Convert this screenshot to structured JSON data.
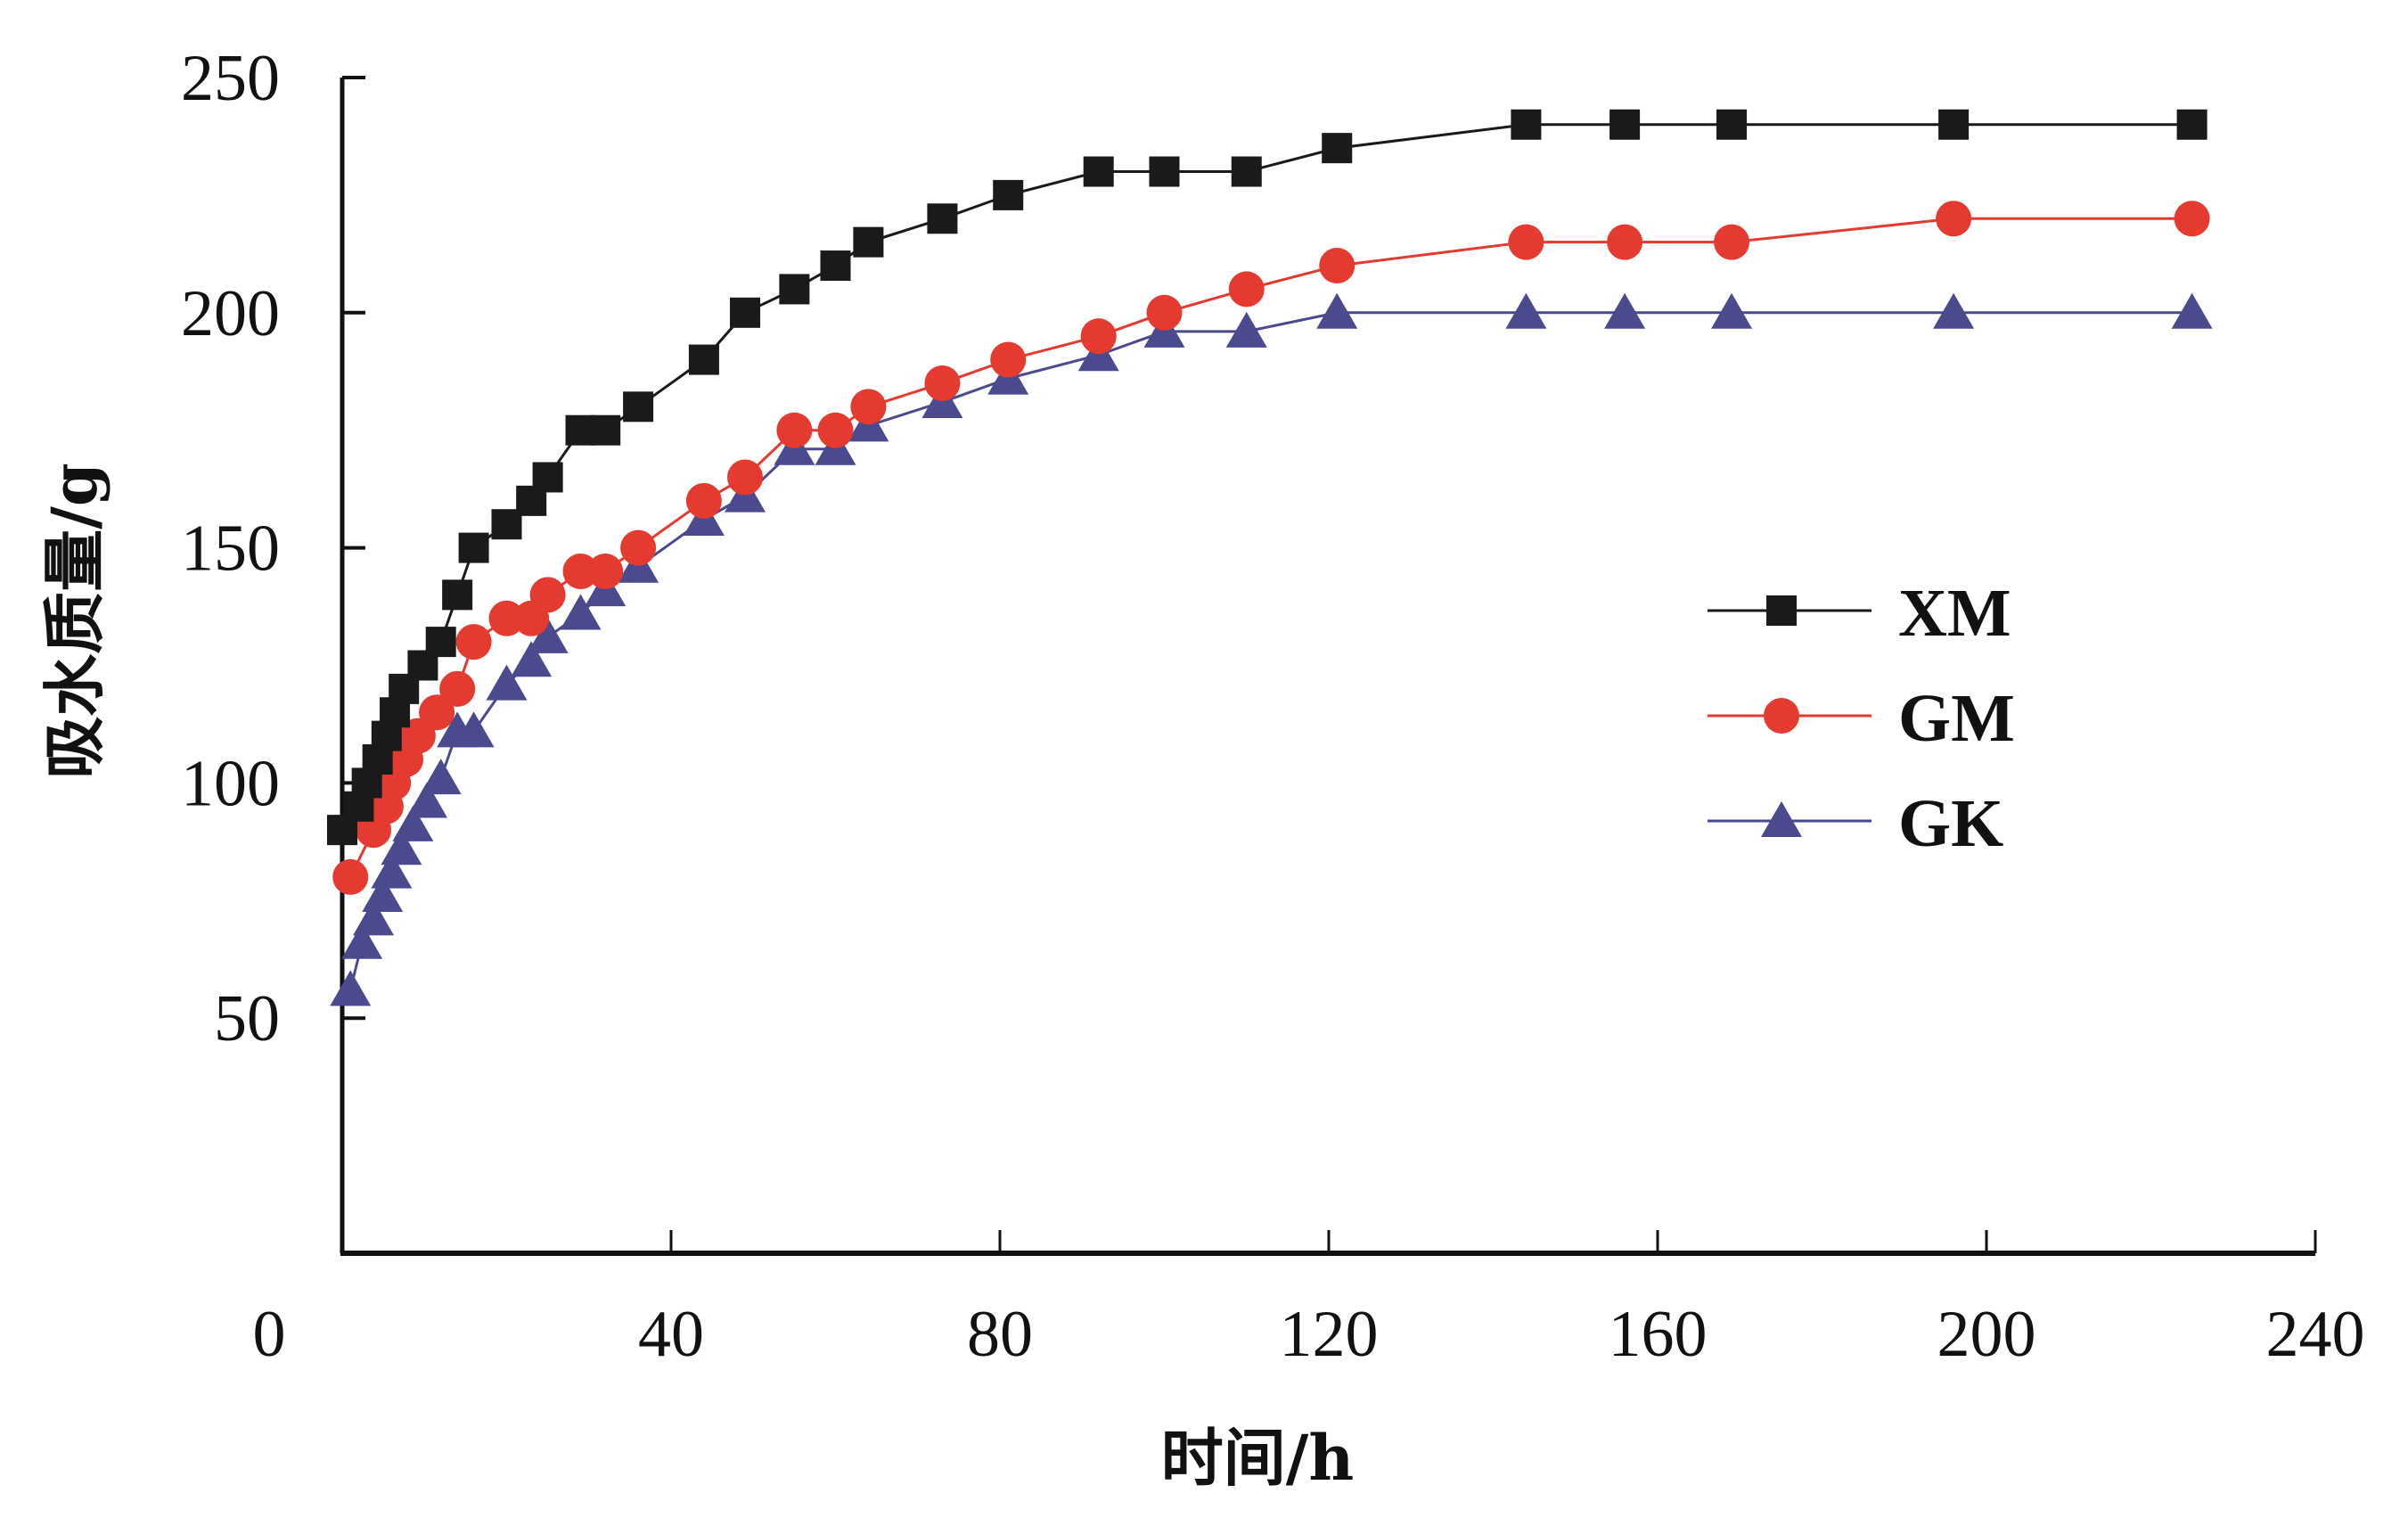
{
  "chart_data": {
    "type": "line",
    "title": "",
    "xlabel": "时间/h",
    "ylabel": "吸水质量/g",
    "xlim": [
      0,
      240
    ],
    "ylim": [
      0,
      250
    ],
    "xticks": [
      40,
      80,
      120,
      160,
      200,
      240
    ],
    "yticks": [
      50,
      100,
      150,
      200,
      250
    ],
    "origin_label": "0",
    "grid": false,
    "legend_position": "center-right",
    "series": [
      {
        "name": "XM",
        "marker": "square",
        "color": "#1a1a1a",
        "x": [
          0,
          2,
          3,
          4.3,
          5.4,
          6.4,
          7.5,
          9.8,
          12,
          14,
          16,
          20,
          23,
          25,
          29,
          32,
          36,
          44,
          49,
          55,
          60,
          64,
          73,
          81,
          92,
          100,
          110,
          121,
          144,
          156,
          169,
          196,
          225
        ],
        "y": [
          90,
          95,
          100,
          105,
          110,
          115,
          120,
          125,
          130,
          140,
          150,
          155,
          160,
          165,
          175,
          175,
          180,
          190,
          200,
          205,
          210,
          215,
          220,
          225,
          230,
          230,
          230,
          235,
          240,
          240,
          240,
          240,
          240
        ]
      },
      {
        "name": "GM",
        "marker": "circle",
        "color": "#e53a30",
        "x": [
          1,
          3.8,
          5.3,
          6.2,
          7.7,
          9.2,
          11.5,
          14,
          16,
          20,
          23,
          25,
          29,
          32,
          36,
          44,
          49,
          55,
          60,
          64,
          73,
          81,
          92,
          100,
          110,
          121,
          144,
          156,
          169,
          196,
          225
        ],
        "y": [
          80,
          90,
          95,
          100,
          105,
          110,
          115,
          120,
          130,
          135,
          135,
          140,
          145,
          145,
          150,
          160,
          165,
          175,
          175,
          180,
          185,
          190,
          195,
          200,
          205,
          210,
          215,
          215,
          215,
          220,
          220
        ]
      },
      {
        "name": "GK",
        "marker": "triangle",
        "color": "#4b4a8e",
        "x": [
          1,
          2.4,
          3.8,
          4.9,
          6,
          7.2,
          8.6,
          10.3,
          12,
          14,
          16,
          20,
          23,
          25,
          29,
          32,
          36,
          44,
          49,
          55,
          60,
          64,
          73,
          81,
          92,
          100,
          110,
          121,
          144,
          156,
          169,
          196,
          225
        ],
        "y": [
          56,
          66,
          71,
          76,
          81,
          86,
          91,
          96,
          101,
          111,
          111,
          121,
          126,
          131,
          136,
          141,
          146,
          156,
          161,
          171,
          171,
          176,
          181,
          186,
          191,
          196,
          196,
          200,
          200,
          200,
          200,
          200,
          200
        ]
      }
    ]
  }
}
